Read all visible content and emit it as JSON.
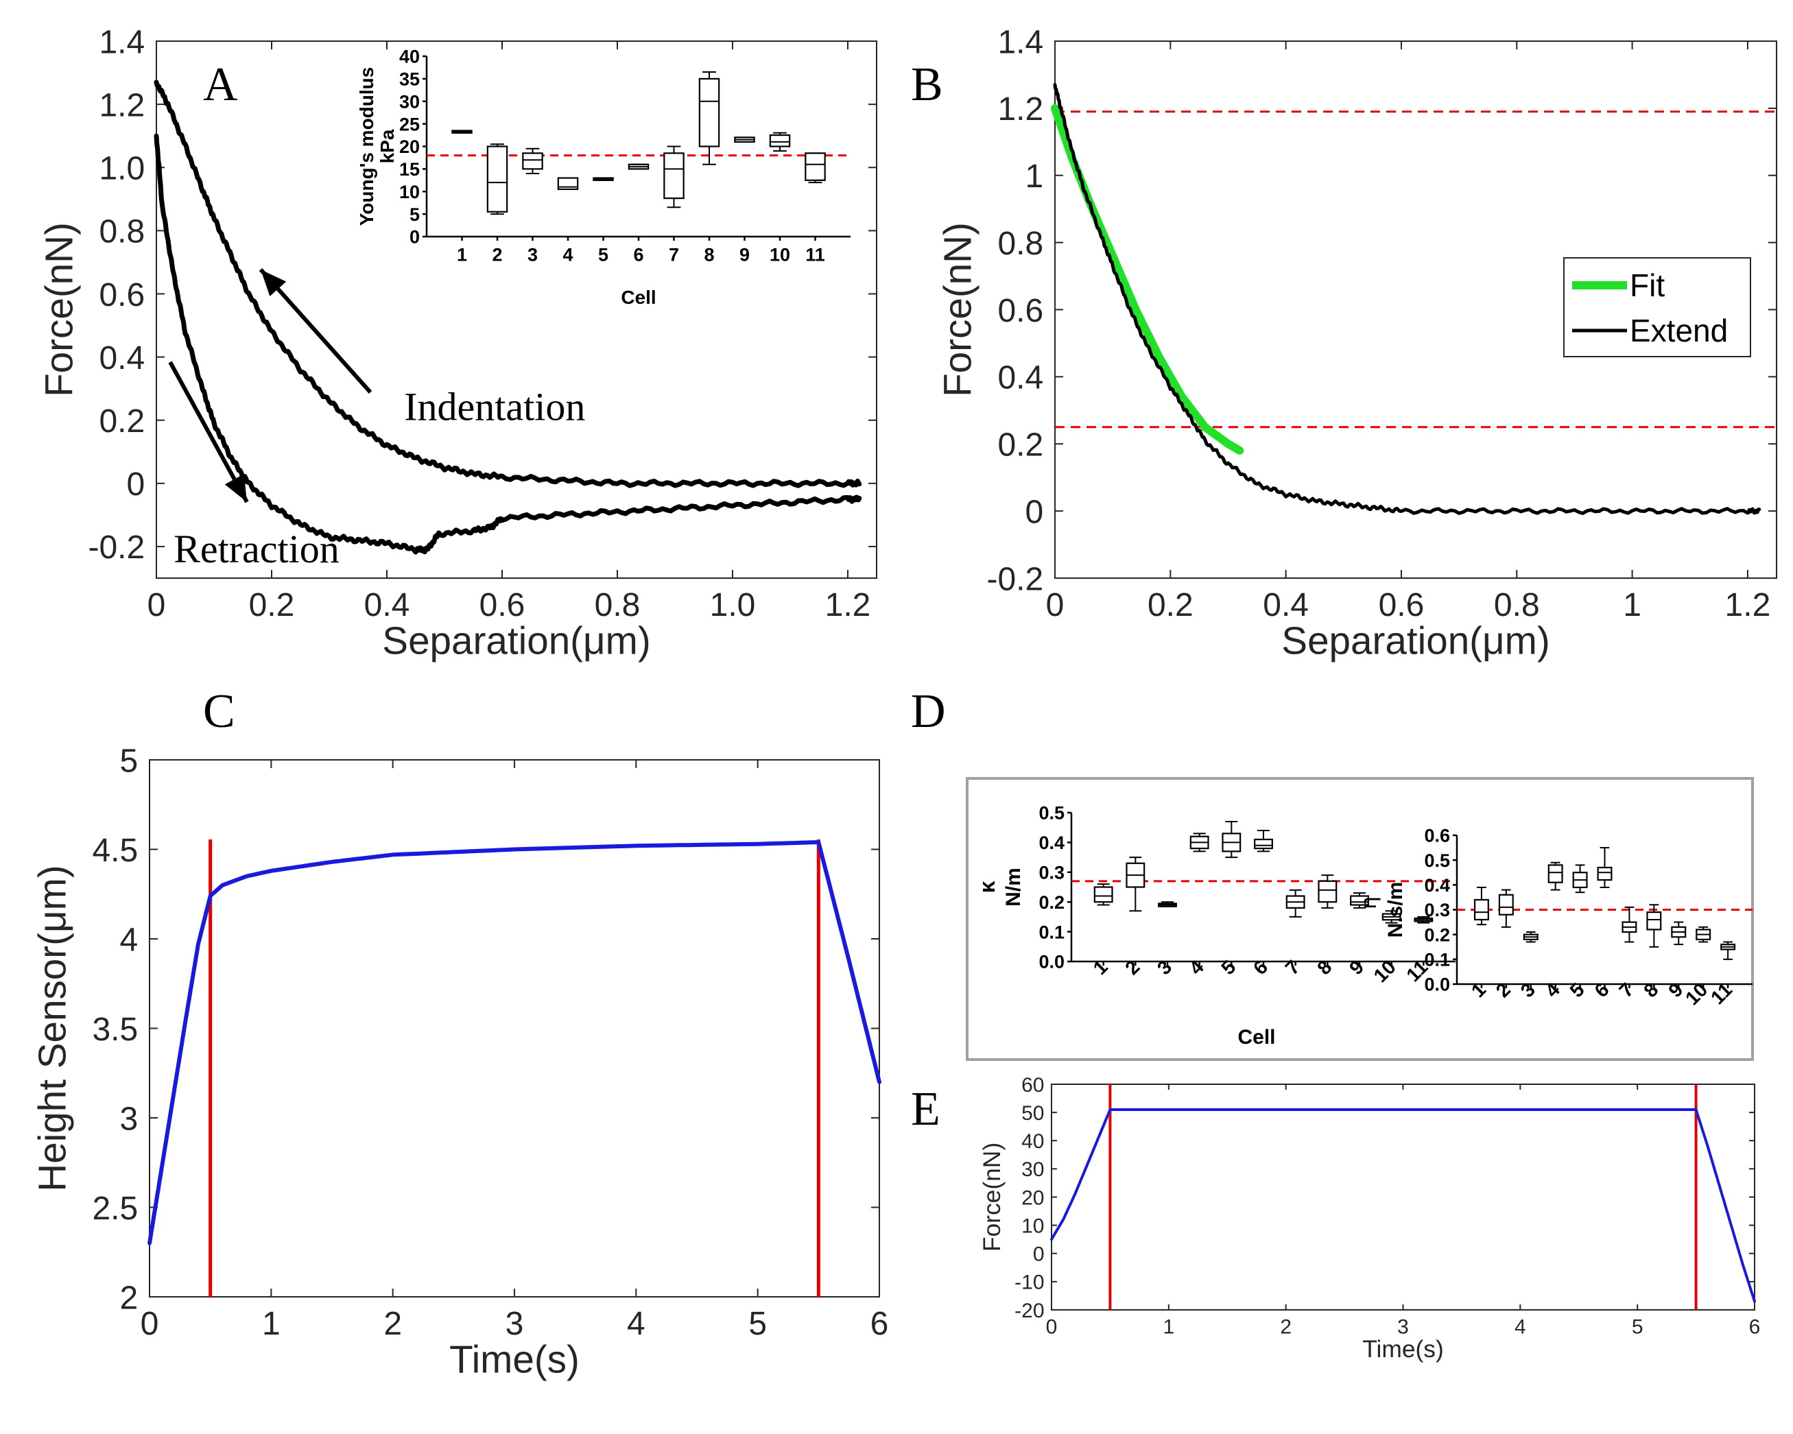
{
  "figure": {
    "panel_labels": {
      "A": "A",
      "B": "B",
      "C": "C",
      "D": "D",
      "E": "E"
    }
  },
  "colors": {
    "black": "#000000",
    "red_dashed": "#e60000",
    "red_line": "#e60000",
    "blue": "#1a1adf",
    "green": "#22e02a",
    "frame": "#a0a0a0"
  },
  "chart_data": [
    {
      "id": "A",
      "type": "line",
      "xlabel": "Separation(μm)",
      "ylabel": "Force(nN)",
      "xlim": [
        0,
        1.25
      ],
      "ylim": [
        -0.3,
        1.4
      ],
      "xticks": [
        0,
        0.2,
        0.4,
        0.6,
        0.8,
        1.0,
        1.2
      ],
      "xtick_labels": [
        "0",
        "0.2",
        "0.4",
        "0.6",
        "0.8",
        "1.0",
        "1.2"
      ],
      "yticks": [
        -0.2,
        0,
        0.2,
        0.4,
        0.6,
        0.8,
        1.0,
        1.2,
        1.4
      ],
      "ytick_labels": [
        "-0.2",
        "0",
        "0.2",
        "0.4",
        "0.6",
        "0.8",
        "1.0",
        "1.2",
        "1.4"
      ],
      "annotations": [
        "Indentation",
        "Retraction"
      ],
      "series": [
        {
          "name": "Indentation",
          "x": [
            0,
            0.02,
            0.05,
            0.08,
            0.1,
            0.13,
            0.16,
            0.2,
            0.25,
            0.3,
            0.35,
            0.4,
            0.45,
            0.5,
            0.55,
            0.6,
            0.7,
            0.8,
            0.9,
            1.0,
            1.1,
            1.2,
            1.22
          ],
          "y": [
            1.27,
            1.2,
            1.07,
            0.93,
            0.84,
            0.72,
            0.6,
            0.48,
            0.36,
            0.26,
            0.18,
            0.12,
            0.08,
            0.05,
            0.03,
            0.02,
            0.01,
            0.0,
            0.0,
            0.0,
            0.0,
            0.0,
            0.0
          ]
        },
        {
          "name": "Retraction",
          "x": [
            0,
            0.01,
            0.03,
            0.05,
            0.08,
            0.1,
            0.13,
            0.16,
            0.2,
            0.25,
            0.3,
            0.35,
            0.4,
            0.45,
            0.47,
            0.49,
            0.55,
            0.58,
            0.6,
            0.7,
            0.8,
            0.9,
            1.0,
            1.1,
            1.2,
            1.22
          ],
          "y": [
            1.1,
            0.88,
            0.66,
            0.48,
            0.3,
            0.19,
            0.08,
            0.0,
            -0.07,
            -0.13,
            -0.17,
            -0.18,
            -0.19,
            -0.21,
            -0.21,
            -0.16,
            -0.15,
            -0.14,
            -0.11,
            -0.1,
            -0.09,
            -0.08,
            -0.07,
            -0.06,
            -0.05,
            -0.05
          ]
        }
      ]
    },
    {
      "id": "A-inset",
      "type": "box",
      "xlabel": "Cell",
      "ylabel": "Young's modulus kPa",
      "categories": [
        "1",
        "2",
        "3",
        "4",
        "5",
        "6",
        "7",
        "8",
        "9",
        "10",
        "11"
      ],
      "ylim": [
        0,
        40
      ],
      "yticks": [
        0,
        5,
        10,
        15,
        20,
        25,
        30,
        35,
        40
      ],
      "reference_line": 18,
      "boxes": [
        {
          "min": 23,
          "q1": 23,
          "median": 23.2,
          "q3": 23.5,
          "max": 23.5
        },
        {
          "min": 5,
          "q1": 5.5,
          "median": 12,
          "q3": 20,
          "max": 20.5
        },
        {
          "min": 14,
          "q1": 15,
          "median": 17,
          "q3": 18.5,
          "max": 19.5
        },
        {
          "min": 10.5,
          "q1": 10.5,
          "median": 11,
          "q3": 13,
          "max": 13
        },
        {
          "min": 12.5,
          "q1": 12.5,
          "median": 12.8,
          "q3": 13,
          "max": 13
        },
        {
          "min": 15,
          "q1": 15,
          "median": 15.5,
          "q3": 16,
          "max": 16
        },
        {
          "min": 6.5,
          "q1": 8.5,
          "median": 15,
          "q3": 18.5,
          "max": 20
        },
        {
          "min": 16,
          "q1": 20,
          "median": 30,
          "q3": 35,
          "max": 36.5
        },
        {
          "min": 21,
          "q1": 21,
          "median": 21.5,
          "q3": 22,
          "max": 22
        },
        {
          "min": 19,
          "q1": 20,
          "median": 21,
          "q3": 22.5,
          "max": 23
        },
        {
          "min": 12,
          "q1": 12.5,
          "median": 16,
          "q3": 18.5,
          "max": 18.5
        }
      ]
    },
    {
      "id": "B",
      "type": "line",
      "xlabel": "Separation(μm)",
      "ylabel": "Force(nN)",
      "xlim": [
        0,
        1.25
      ],
      "ylim": [
        -0.2,
        1.4
      ],
      "xticks": [
        0,
        0.2,
        0.4,
        0.6,
        0.8,
        1,
        1.2
      ],
      "xtick_labels": [
        "0",
        "0.2",
        "0.4",
        "0.6",
        "0.8",
        "1",
        "1.2"
      ],
      "yticks": [
        -0.2,
        0,
        0.2,
        0.4,
        0.6,
        0.8,
        1,
        1.2,
        1.4
      ],
      "ytick_labels": [
        "-0.2",
        "0",
        "0.2",
        "0.4",
        "0.6",
        "0.8",
        "1",
        "1.2",
        "1.4"
      ],
      "reference_lines": [
        1.19,
        0.25
      ],
      "legend": [
        "Fit",
        "Extend"
      ],
      "series": [
        {
          "name": "Extend",
          "x": [
            0,
            0.01,
            0.03,
            0.05,
            0.08,
            0.1,
            0.13,
            0.16,
            0.2,
            0.23,
            0.26,
            0.3,
            0.35,
            0.4,
            0.45,
            0.5,
            0.55,
            0.6,
            0.7,
            0.8,
            0.9,
            1.0,
            1.1,
            1.2,
            1.22
          ],
          "y": [
            1.27,
            1.2,
            1.07,
            0.96,
            0.82,
            0.73,
            0.6,
            0.49,
            0.37,
            0.29,
            0.21,
            0.14,
            0.08,
            0.05,
            0.03,
            0.02,
            0.01,
            0.0,
            0.0,
            0.0,
            0.0,
            0.0,
            0.0,
            0.0,
            0.0
          ]
        },
        {
          "name": "Fit",
          "x": [
            0,
            0.03,
            0.06,
            0.1,
            0.14,
            0.18,
            0.22,
            0.26,
            0.3,
            0.32
          ],
          "y": [
            1.2,
            1.05,
            0.92,
            0.76,
            0.6,
            0.46,
            0.34,
            0.25,
            0.2,
            0.18
          ]
        }
      ]
    },
    {
      "id": "C",
      "type": "line",
      "xlabel": "Time(s)",
      "ylabel": "Height Sensor(μm)",
      "xlim": [
        0,
        6
      ],
      "ylim": [
        2,
        5
      ],
      "xticks": [
        0,
        1,
        2,
        3,
        4,
        5,
        6
      ],
      "yticks": [
        2,
        2.5,
        3,
        3.5,
        4,
        4.5,
        5
      ],
      "ytick_labels": [
        "2",
        "2.5",
        "3",
        "3.5",
        "4",
        "4.5",
        "5"
      ],
      "vertical_lines": [
        0.5,
        5.5
      ],
      "series": [
        {
          "name": "Height",
          "x": [
            0,
            0.1,
            0.2,
            0.3,
            0.4,
            0.5,
            0.6,
            0.8,
            1.0,
            1.5,
            2.0,
            3.0,
            4.0,
            5.0,
            5.5,
            5.75,
            6.0
          ],
          "y": [
            2.3,
            2.72,
            3.14,
            3.56,
            3.97,
            4.24,
            4.3,
            4.35,
            4.38,
            4.43,
            4.47,
            4.5,
            4.52,
            4.53,
            4.54,
            3.88,
            3.2
          ]
        }
      ]
    },
    {
      "id": "D-left",
      "type": "box",
      "xlabel": "Cell",
      "ylabel": "N/m",
      "symbol": "κ",
      "categories": [
        "1",
        "2",
        "3",
        "4",
        "5",
        "6",
        "7",
        "8",
        "9",
        "10",
        "11"
      ],
      "ylim": [
        0,
        0.5
      ],
      "yticks": [
        0.0,
        0.1,
        0.2,
        0.3,
        0.4,
        0.5
      ],
      "ytick_labels": [
        "0.0",
        "0.1",
        "0.2",
        "0.3",
        "0.4",
        "0.5"
      ],
      "reference_line": 0.27,
      "boxes": [
        {
          "min": 0.19,
          "q1": 0.2,
          "median": 0.22,
          "q3": 0.25,
          "max": 0.26
        },
        {
          "min": 0.17,
          "q1": 0.25,
          "median": 0.29,
          "q3": 0.33,
          "max": 0.35
        },
        {
          "min": 0.185,
          "q1": 0.185,
          "median": 0.19,
          "q3": 0.195,
          "max": 0.2
        },
        {
          "min": 0.37,
          "q1": 0.38,
          "median": 0.4,
          "q3": 0.42,
          "max": 0.43
        },
        {
          "min": 0.35,
          "q1": 0.37,
          "median": 0.4,
          "q3": 0.43,
          "max": 0.47
        },
        {
          "min": 0.37,
          "q1": 0.38,
          "median": 0.39,
          "q3": 0.41,
          "max": 0.44
        },
        {
          "min": 0.15,
          "q1": 0.18,
          "median": 0.2,
          "q3": 0.22,
          "max": 0.24
        },
        {
          "min": 0.18,
          "q1": 0.2,
          "median": 0.24,
          "q3": 0.27,
          "max": 0.29
        },
        {
          "min": 0.18,
          "q1": 0.19,
          "median": 0.2,
          "q3": 0.22,
          "max": 0.23
        },
        {
          "min": 0.13,
          "q1": 0.14,
          "median": 0.15,
          "q3": 0.16,
          "max": 0.17
        },
        {
          "min": 0.13,
          "q1": 0.135,
          "median": 0.14,
          "q3": 0.145,
          "max": 0.15
        }
      ]
    },
    {
      "id": "D-right",
      "type": "box",
      "xlabel": "",
      "ylabel": "N.s/m",
      "symbol": "η",
      "categories": [
        "1",
        "2",
        "3",
        "4",
        "5",
        "6",
        "7",
        "8",
        "9",
        "10",
        "11"
      ],
      "ylim": [
        0,
        0.6
      ],
      "yticks": [
        0.0,
        0.1,
        0.2,
        0.3,
        0.4,
        0.5,
        0.6
      ],
      "ytick_labels": [
        "0.0",
        "0.1",
        "0.2",
        "0.3",
        "0.4",
        "0.5",
        "0.6"
      ],
      "reference_line": 0.3,
      "boxes": [
        {
          "min": 0.24,
          "q1": 0.26,
          "median": 0.29,
          "q3": 0.34,
          "max": 0.39
        },
        {
          "min": 0.23,
          "q1": 0.28,
          "median": 0.31,
          "q3": 0.36,
          "max": 0.38
        },
        {
          "min": 0.17,
          "q1": 0.18,
          "median": 0.19,
          "q3": 0.2,
          "max": 0.21
        },
        {
          "min": 0.38,
          "q1": 0.41,
          "median": 0.45,
          "q3": 0.48,
          "max": 0.49
        },
        {
          "min": 0.37,
          "q1": 0.39,
          "median": 0.42,
          "q3": 0.45,
          "max": 0.48
        },
        {
          "min": 0.39,
          "q1": 0.42,
          "median": 0.45,
          "q3": 0.47,
          "max": 0.55
        },
        {
          "min": 0.17,
          "q1": 0.21,
          "median": 0.23,
          "q3": 0.25,
          "max": 0.31
        },
        {
          "min": 0.15,
          "q1": 0.22,
          "median": 0.26,
          "q3": 0.29,
          "max": 0.32
        },
        {
          "min": 0.16,
          "q1": 0.19,
          "median": 0.21,
          "q3": 0.23,
          "max": 0.25
        },
        {
          "min": 0.17,
          "q1": 0.18,
          "median": 0.2,
          "q3": 0.22,
          "max": 0.23
        },
        {
          "min": 0.1,
          "q1": 0.14,
          "median": 0.15,
          "q3": 0.16,
          "max": 0.17
        }
      ]
    },
    {
      "id": "E",
      "type": "line",
      "xlabel": "Time(s)",
      "ylabel": "Force(nN)",
      "xlim": [
        0,
        6
      ],
      "ylim": [
        -20,
        60
      ],
      "xticks": [
        0,
        1,
        2,
        3,
        4,
        5,
        6
      ],
      "yticks": [
        -20,
        -10,
        0,
        10,
        20,
        30,
        40,
        50,
        60
      ],
      "vertical_lines": [
        0.5,
        5.5
      ],
      "series": [
        {
          "name": "Force",
          "x": [
            0,
            0.1,
            0.2,
            0.3,
            0.4,
            0.5,
            0.6,
            1.0,
            2.0,
            3.0,
            4.0,
            5.0,
            5.5,
            5.6,
            5.7,
            5.8,
            5.9,
            6.0
          ],
          "y": [
            5,
            12,
            21,
            31,
            41,
            51,
            51,
            51,
            51,
            51,
            51,
            51,
            51,
            38,
            24,
            10,
            -4,
            -17
          ]
        }
      ]
    }
  ]
}
